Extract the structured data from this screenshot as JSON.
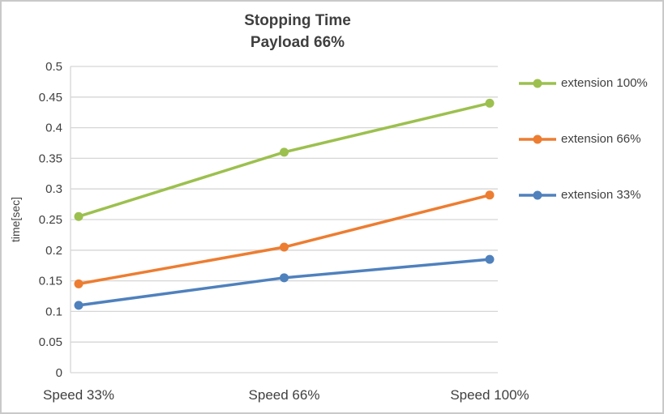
{
  "chart_data": {
    "type": "line",
    "title": "Stopping Time",
    "subtitle": "Payload 66%",
    "ylabel": "time[sec]",
    "xlabel": "",
    "categories": [
      "Speed 33%",
      "Speed 66%",
      "Speed 100%"
    ],
    "series": [
      {
        "name": "extension 100%",
        "color": "#9cc04e",
        "values": [
          0.255,
          0.36,
          0.44
        ]
      },
      {
        "name": "extension 66%",
        "color": "#ed7d31",
        "values": [
          0.145,
          0.205,
          0.29
        ]
      },
      {
        "name": "extension 33%",
        "color": "#4f81bd",
        "values": [
          0.11,
          0.155,
          0.185
        ]
      }
    ],
    "ylim": [
      0,
      0.5
    ],
    "ytick_step": 0.05,
    "grid": true,
    "legend_position": "right",
    "colors": {
      "grid": "#d6d6d6",
      "axis_text": "#404040",
      "title_text": "#3f3f3f",
      "frame_border": "#c9c9c9",
      "background": "#ffffff"
    }
  }
}
